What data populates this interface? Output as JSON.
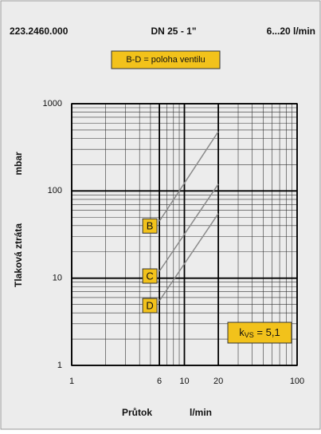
{
  "chart_data": {
    "type": "line",
    "header": [
      "223.2460.000",
      "DN 25 - 1\"",
      "6...20 l/min"
    ],
    "legend_note": "B-D = poloha ventilu",
    "ylabel": [
      "Tlaková ztráta",
      "mbar"
    ],
    "xlabel": [
      "Průtok",
      "l/min"
    ],
    "annotation": [
      "k",
      "VS",
      " = 5,1"
    ],
    "x": [
      6,
      20
    ],
    "series": [
      {
        "name": "B",
        "color": "#8a8a8a",
        "values": [
          45,
          480
        ]
      },
      {
        "name": "C",
        "color": "#8a8a8a",
        "values": [
          12,
          120
        ]
      },
      {
        "name": "D",
        "color": "#8a8a8a",
        "values": [
          5.5,
          55
        ]
      }
    ],
    "label_color": "#f2c21b",
    "xlim": [
      1,
      100
    ],
    "xticks": [
      1,
      6,
      10,
      20,
      100
    ],
    "ylim": [
      1,
      1000
    ],
    "yticks": [
      1,
      10,
      100,
      1000
    ],
    "log_x": true,
    "log_y": true,
    "grid": true
  }
}
